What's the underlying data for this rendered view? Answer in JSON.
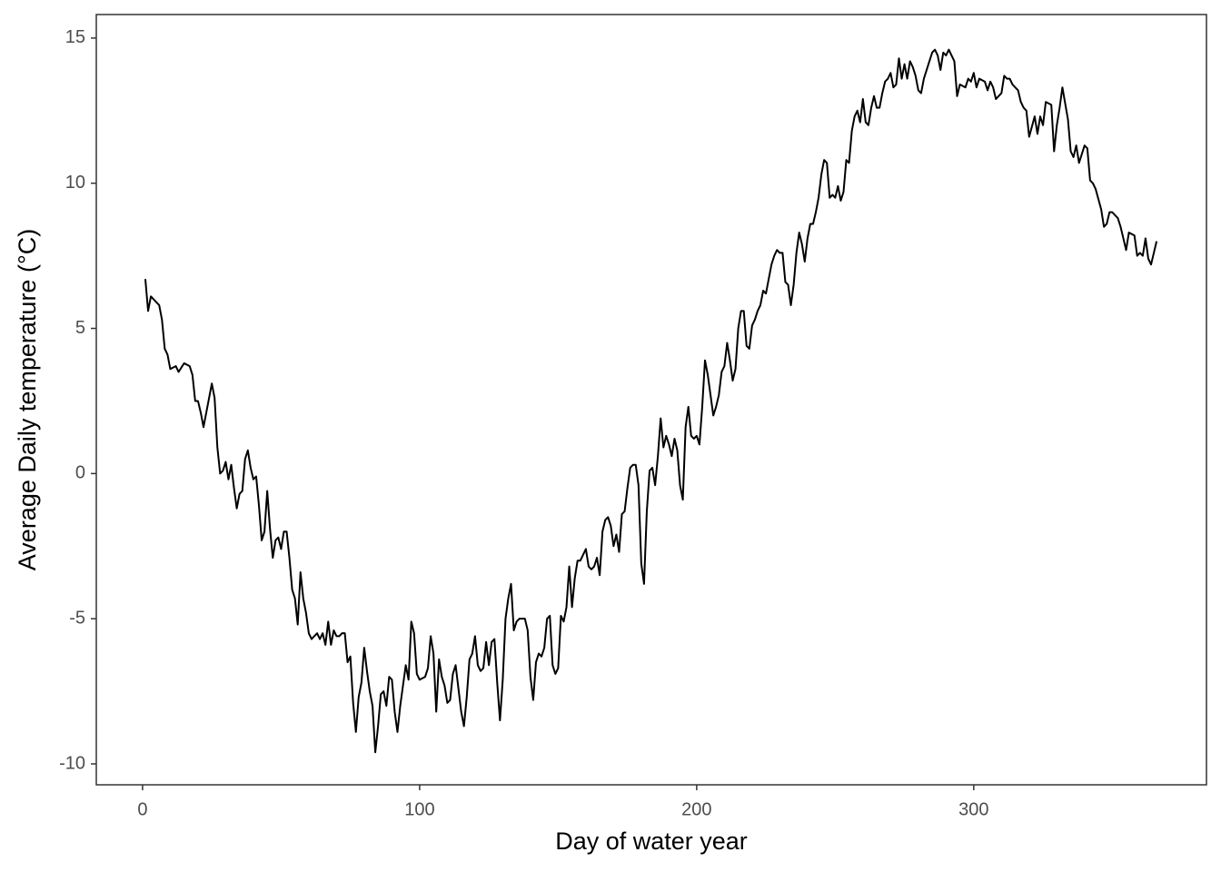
{
  "chart_data": {
    "type": "line",
    "x_label": "Day of water year",
    "y_label": "Average Daily temperature (°C)",
    "color": "#000000",
    "grid": false,
    "xlim": [
      -16.7,
      384
    ],
    "ylim": [
      -10.72,
      15.81
    ],
    "xticks": [
      0,
      100,
      200,
      300
    ],
    "yticks": [
      -10,
      -5,
      0,
      5,
      10,
      15
    ],
    "x": [
      1,
      2,
      3,
      5,
      6,
      7,
      8,
      9,
      10,
      12,
      13,
      15,
      17,
      18,
      19,
      20,
      21,
      22,
      23,
      25,
      26,
      27,
      28,
      29,
      30,
      31,
      32,
      33,
      34,
      35,
      36,
      37,
      38,
      39,
      40,
      41,
      42,
      43,
      44,
      45,
      46,
      47,
      48,
      49,
      50,
      51,
      52,
      53,
      54,
      55,
      56,
      57,
      58,
      59,
      60,
      61,
      62,
      63,
      64,
      65,
      66,
      67,
      68,
      69,
      70,
      71,
      72,
      73,
      74,
      75,
      76,
      77,
      78,
      79,
      80,
      81,
      82,
      83,
      84,
      85,
      86,
      87,
      88,
      89,
      90,
      91,
      92,
      93,
      94,
      95,
      96,
      97,
      98,
      99,
      100,
      102,
      103,
      104,
      105,
      106,
      107,
      108,
      109,
      110,
      111,
      112,
      113,
      114,
      115,
      116,
      117,
      118,
      119,
      120,
      121,
      122,
      123,
      124,
      125,
      126,
      127,
      128,
      129,
      130,
      131,
      132,
      133,
      134,
      135,
      136,
      138,
      139,
      140,
      141,
      142,
      143,
      144,
      145,
      146,
      147,
      148,
      149,
      150,
      151,
      152,
      153,
      154,
      155,
      156,
      157,
      158,
      159,
      160,
      161,
      162,
      163,
      164,
      165,
      166,
      167,
      168,
      169,
      170,
      171,
      172,
      173,
      174,
      175,
      176,
      177,
      178,
      179,
      180,
      181,
      182,
      183,
      184,
      185,
      186,
      187,
      188,
      189,
      190,
      191,
      192,
      193,
      194,
      195,
      196,
      197,
      198,
      199,
      200,
      201,
      202,
      203,
      204,
      205,
      206,
      207,
      208,
      209,
      210,
      211,
      212,
      213,
      214,
      215,
      216,
      217,
      218,
      219,
      220,
      221,
      222,
      223,
      224,
      225,
      226,
      227,
      228,
      229,
      230,
      231,
      232,
      233,
      234,
      235,
      236,
      237,
      238,
      239,
      240,
      241,
      242,
      243,
      244,
      245,
      246,
      247,
      248,
      249,
      250,
      251,
      252,
      253,
      254,
      255,
      256,
      257,
      258,
      259,
      260,
      261,
      262,
      263,
      264,
      265,
      266,
      267,
      268,
      269,
      270,
      271,
      272,
      273,
      274,
      275,
      276,
      277,
      278,
      279,
      280,
      281,
      282,
      283,
      284,
      285,
      286,
      287,
      288,
      289,
      290,
      291,
      292,
      293,
      294,
      295,
      297,
      298,
      299,
      300,
      301,
      302,
      304,
      305,
      306,
      307,
      308,
      310,
      311,
      312,
      313,
      314,
      316,
      317,
      318,
      319,
      320,
      322,
      323,
      324,
      325,
      326,
      328,
      329,
      330,
      331,
      332,
      334,
      335,
      336,
      337,
      338,
      340,
      341,
      342,
      343,
      344,
      346,
      347,
      348,
      349,
      350,
      352,
      353,
      354,
      355,
      356,
      358,
      359,
      360,
      361,
      362,
      363,
      364,
      365,
      366
    ],
    "values": [
      6.7,
      5.6,
      6.1,
      5.9,
      5.8,
      5.3,
      4.3,
      4.1,
      3.6,
      3.7,
      3.5,
      3.8,
      3.7,
      3.4,
      2.5,
      2.5,
      2.1,
      1.6,
      2.1,
      3.1,
      2.6,
      0.9,
      0,
      0.1,
      0.4,
      -0.2,
      0.3,
      -0.5,
      -1.2,
      -0.7,
      -0.6,
      0.5,
      0.8,
      0.2,
      -0.2,
      -0.1,
      -1.1,
      -2.3,
      -2.0,
      -0.6,
      -1.9,
      -2.9,
      -2.3,
      -2.2,
      -2.6,
      -2.0,
      -2.0,
      -2.9,
      -4.0,
      -4.3,
      -5.2,
      -3.4,
      -4.3,
      -4.8,
      -5.5,
      -5.7,
      -5.6,
      -5.5,
      -5.7,
      -5.5,
      -5.9,
      -5.1,
      -5.9,
      -5.4,
      -5.6,
      -5.6,
      -5.5,
      -5.5,
      -6.5,
      -6.3,
      -7.9,
      -8.9,
      -7.7,
      -7.2,
      -6.0,
      -6.8,
      -7.5,
      -8.0,
      -9.6,
      -8.7,
      -7.6,
      -7.5,
      -8.0,
      -7.0,
      -7.1,
      -8.2,
      -8.9,
      -8.0,
      -7.3,
      -6.6,
      -7.1,
      -5.1,
      -5.5,
      -6.9,
      -7.1,
      -7.0,
      -6.7,
      -5.6,
      -6.2,
      -8.2,
      -6.4,
      -7.0,
      -7.3,
      -7.9,
      -7.8,
      -6.9,
      -6.6,
      -7.4,
      -8.2,
      -8.7,
      -7.7,
      -6.4,
      -6.2,
      -5.6,
      -6.6,
      -6.8,
      -6.7,
      -5.8,
      -6.6,
      -5.8,
      -5.7,
      -7.2,
      -8.5,
      -7.1,
      -5.0,
      -4.3,
      -3.8,
      -5.4,
      -5.1,
      -5.0,
      -5.0,
      -5.4,
      -7.0,
      -7.8,
      -6.5,
      -6.2,
      -6.3,
      -6.0,
      -5.0,
      -4.9,
      -6.6,
      -6.9,
      -6.7,
      -4.9,
      -5.1,
      -4.6,
      -3.2,
      -4.6,
      -3.6,
      -3.0,
      -3.0,
      -2.8,
      -2.6,
      -3.2,
      -3.3,
      -3.2,
      -2.9,
      -3.5,
      -2.0,
      -1.6,
      -1.5,
      -1.8,
      -2.5,
      -2.1,
      -2.7,
      -1.4,
      -1.3,
      -0.5,
      0.2,
      0.3,
      0.3,
      -0.4,
      -3.1,
      -3.8,
      -1.3,
      0.1,
      0.2,
      -0.4,
      0.6,
      1.9,
      0.9,
      1.3,
      1.0,
      0.6,
      1.2,
      0.8,
      -0.4,
      -0.9,
      1.6,
      2.3,
      1.3,
      1.2,
      1.3,
      1.0,
      2.3,
      3.9,
      3.4,
      2.7,
      2.0,
      2.3,
      2.7,
      3.5,
      3.7,
      4.5,
      3.9,
      3.2,
      3.6,
      5.0,
      5.6,
      5.6,
      4.4,
      4.3,
      5.1,
      5.3,
      5.6,
      5.8,
      6.3,
      6.2,
      6.7,
      7.2,
      7.5,
      7.7,
      7.6,
      7.6,
      6.6,
      6.5,
      5.8,
      6.5,
      7.6,
      8.3,
      7.9,
      7.3,
      8.1,
      8.6,
      8.6,
      9.0,
      9.5,
      10.3,
      10.8,
      10.7,
      9.5,
      9.6,
      9.5,
      9.9,
      9.4,
      9.7,
      10.8,
      10.7,
      11.8,
      12.3,
      12.5,
      12.1,
      12.9,
      12.1,
      12.0,
      12.6,
      13.0,
      12.6,
      12.6,
      13.1,
      13.5,
      13.6,
      13.8,
      13.3,
      13.4,
      14.3,
      13.6,
      14.1,
      13.6,
      14.2,
      14.0,
      13.7,
      13.2,
      13.1,
      13.6,
      13.9,
      14.2,
      14.5,
      14.6,
      14.4,
      13.9,
      14.5,
      14.4,
      14.6,
      14.4,
      14.2,
      13.0,
      13.4,
      13.3,
      13.6,
      13.5,
      13.8,
      13.3,
      13.6,
      13.5,
      13.2,
      13.5,
      13.3,
      12.9,
      13.1,
      13.7,
      13.6,
      13.6,
      13.4,
      13.2,
      12.8,
      12.6,
      12.5,
      11.6,
      12.3,
      11.7,
      12.3,
      12.0,
      12.8,
      12.7,
      11.1,
      12.0,
      12.6,
      13.3,
      12.2,
      11.1,
      10.9,
      11.3,
      10.7,
      11.3,
      11.2,
      10.1,
      10.0,
      9.8,
      9.1,
      8.5,
      8.6,
      9.0,
      9.0,
      8.8,
      8.5,
      8.1,
      7.7,
      8.3,
      8.2,
      7.5,
      7.6,
      7.5,
      8.1,
      7.4,
      7.2,
      7.6,
      8.0
    ]
  }
}
